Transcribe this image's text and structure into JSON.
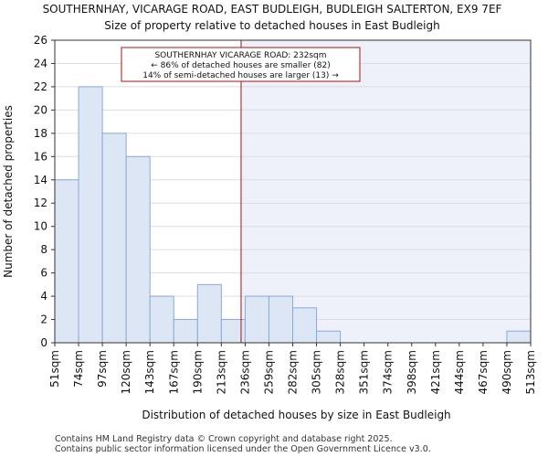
{
  "chart_data": {
    "type": "bar",
    "title": "SOUTHERNHAY, VICARAGE ROAD, EAST BUDLEIGH, BUDLEIGH SALTERTON, EX9 7EF",
    "subtitle": "Size of property relative to detached houses in East Budleigh",
    "xlabel": "Distribution of detached houses by size in East Budleigh",
    "ylabel": "Number of detached properties",
    "ylim": [
      0,
      26
    ],
    "yticks": [
      "0",
      "2",
      "4",
      "6",
      "8",
      "10",
      "12",
      "14",
      "16",
      "18",
      "20",
      "22",
      "24",
      "26"
    ],
    "bin_edges": [
      "51sqm",
      "74sqm",
      "97sqm",
      "120sqm",
      "143sqm",
      "167sqm",
      "190sqm",
      "213sqm",
      "236sqm",
      "259sqm",
      "282sqm",
      "305sqm",
      "328sqm",
      "351sqm",
      "374sqm",
      "398sqm",
      "421sqm",
      "444sqm",
      "467sqm",
      "490sqm",
      "513sqm"
    ],
    "values": [
      14,
      22,
      18,
      16,
      4,
      2,
      5,
      2,
      4,
      4,
      3,
      1,
      0,
      0,
      0,
      0,
      0,
      0,
      0,
      1
    ],
    "marker": {
      "value_sqm": 232,
      "bin_index": 7,
      "fraction_within_bin": 0.83
    },
    "annotation": {
      "line1": "SOUTHERNHAY VICARAGE ROAD: 232sqm",
      "line2": "← 86% of detached houses are smaller (82)",
      "line3": "14% of semi-detached houses are larger (13) →"
    },
    "footer": {
      "line1": "Contains HM Land Registry data © Crown copyright and database right 2025.",
      "line2": "Contains public sector information licensed under the Open Government Licence v3.0."
    },
    "colors": {
      "bar_fill": "#dce6f5",
      "bar_stroke": "#8ba9d6",
      "marker_line": "#aa1111",
      "highlight_bg": "#eef1fa",
      "annotation_border": "#aa1111"
    }
  }
}
